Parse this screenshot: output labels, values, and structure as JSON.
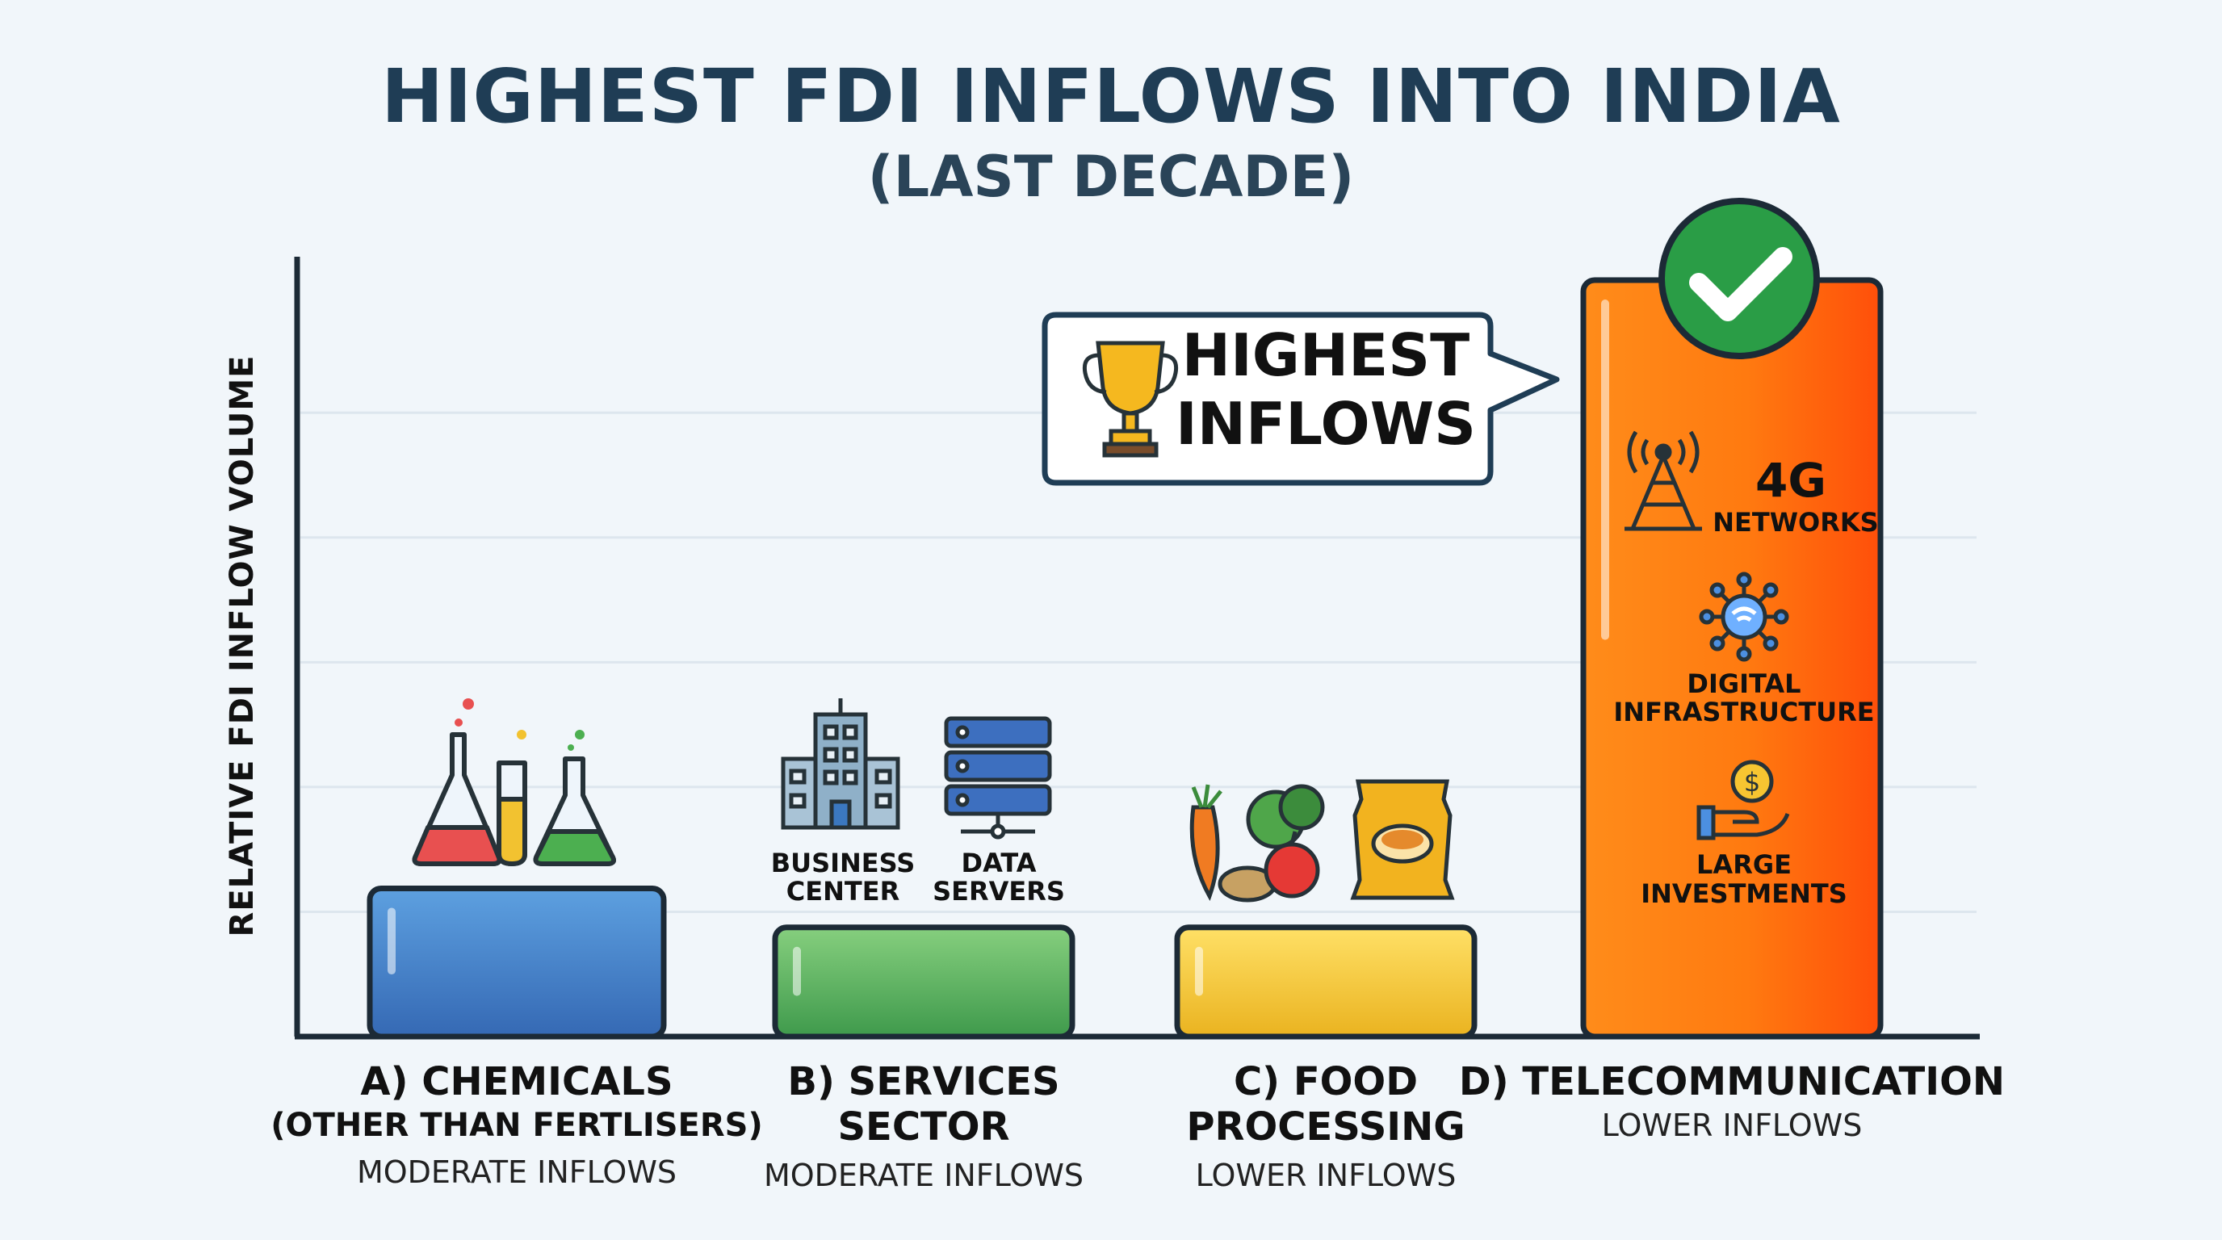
{
  "title": "HIGHEST FDI INFLOWS INTO INDIA",
  "subtitle": "(LAST DECADE)",
  "colors": {
    "chemicals": "#3b78c0",
    "services": "#4ea85a",
    "food": "#f2c230",
    "telecom": "#ff6a10",
    "axis": "#1c2a36",
    "title": "#1f3d55"
  },
  "callout": {
    "line1": "HIGHEST",
    "line2": "INFLOWS",
    "icon": "trophy-icon"
  },
  "check_icon": "checkmark-icon",
  "categories": [
    {
      "label_line1": "A) CHEMICALS",
      "label_line2": "(OTHER THAN FERTLISERS)",
      "status": "MODERATE INFLOWS",
      "icons": [
        {
          "name": "flask-icon",
          "caption": ""
        }
      ]
    },
    {
      "label_line1": "B) SERVICES",
      "label_line2": "SECTOR",
      "status": "MODERATE INFLOWS",
      "icons": [
        {
          "name": "building-icon",
          "caption_line1": "BUSINESS",
          "caption_line2": "CENTER"
        },
        {
          "name": "server-icon",
          "caption_line1": "DATA",
          "caption_line2": "SERVERS"
        }
      ]
    },
    {
      "label_line1": "C) FOOD",
      "label_line2": "PROCESSING",
      "status": "LOWER INFLOWS",
      "icons": [
        {
          "name": "vegetables-icon"
        },
        {
          "name": "food-packet-icon"
        }
      ]
    },
    {
      "label_line1": "D) TELECOMMUNICATION",
      "label_line2": "",
      "status": "LOWER INFLOWS",
      "features": [
        {
          "icon": "cell-tower-icon",
          "line1": "4G",
          "line2": "NETWORKS"
        },
        {
          "icon": "network-icon",
          "line1": "DIGITAL",
          "line2": "INFRASTRUCTURE"
        },
        {
          "icon": "investment-hand-icon",
          "line1": "LARGE",
          "line2": "INVESTMENTS"
        }
      ]
    }
  ],
  "chart_data": {
    "type": "bar",
    "title": "HIGHEST FDI INFLOWS INTO INDIA",
    "subtitle": "(LAST DECADE)",
    "xlabel": "",
    "ylabel": "RELATIVE FDI INFLOW VOLUME",
    "categories": [
      "A) CHEMICALS (OTHER THAN FERTLISERS)",
      "B) SERVICES SECTOR",
      "C) FOOD PROCESSING",
      "D) TELECOMMUNICATION"
    ],
    "values": [
      0.19,
      0.14,
      0.14,
      0.97
    ],
    "ylim": [
      0,
      1
    ],
    "grid": true,
    "annotations": [
      "HIGHEST INFLOWS"
    ]
  }
}
